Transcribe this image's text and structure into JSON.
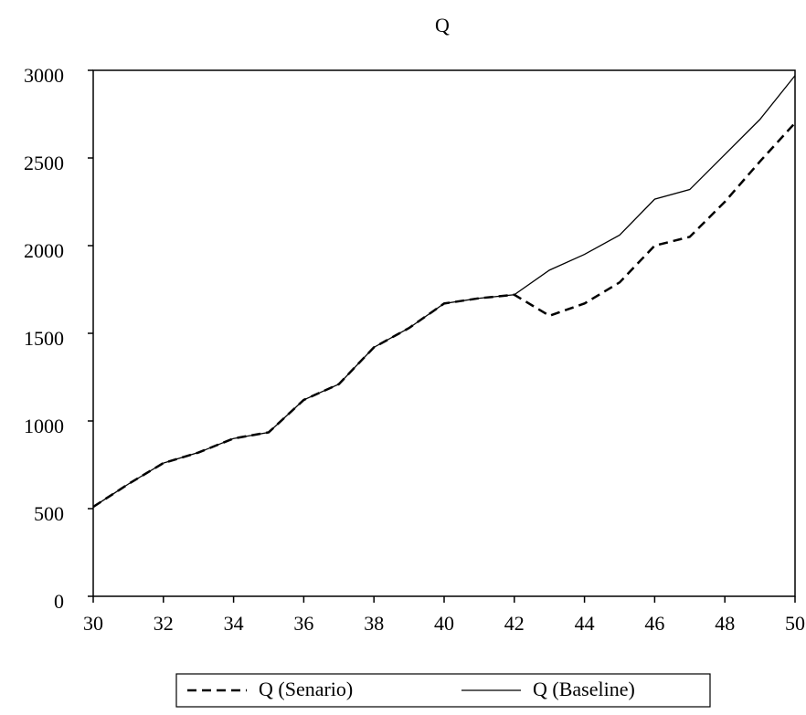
{
  "chart_data": {
    "type": "line",
    "title": "Q",
    "x": [
      30,
      31,
      32,
      33,
      34,
      35,
      36,
      37,
      38,
      39,
      40,
      41,
      42,
      43,
      44,
      45,
      46,
      47,
      48,
      49,
      50
    ],
    "series": [
      {
        "name": "Q (Senario)",
        "color": "#000000",
        "dash": "dashed",
        "values": [
          510,
          640,
          760,
          820,
          900,
          935,
          1120,
          1210,
          1420,
          1530,
          1670,
          1700,
          1720,
          1600,
          1670,
          1790,
          2000,
          2050,
          2250,
          2480,
          2700
        ]
      },
      {
        "name": "Q (Baseline)",
        "color": "#000000",
        "dash": "solid",
        "values": [
          510,
          640,
          760,
          820,
          900,
          935,
          1120,
          1210,
          1420,
          1530,
          1670,
          1700,
          1720,
          1860,
          1950,
          2060,
          2265,
          2320,
          2520,
          2720,
          2970
        ]
      }
    ],
    "xlim": [
      30,
      50
    ],
    "xticks": [
      30,
      32,
      34,
      36,
      38,
      40,
      42,
      44,
      46,
      48,
      50
    ],
    "ylim": [
      0,
      3000
    ],
    "yticks": [
      0,
      500,
      1000,
      1500,
      2000,
      2500,
      3000
    ],
    "grid": false,
    "legend": "bottom"
  }
}
